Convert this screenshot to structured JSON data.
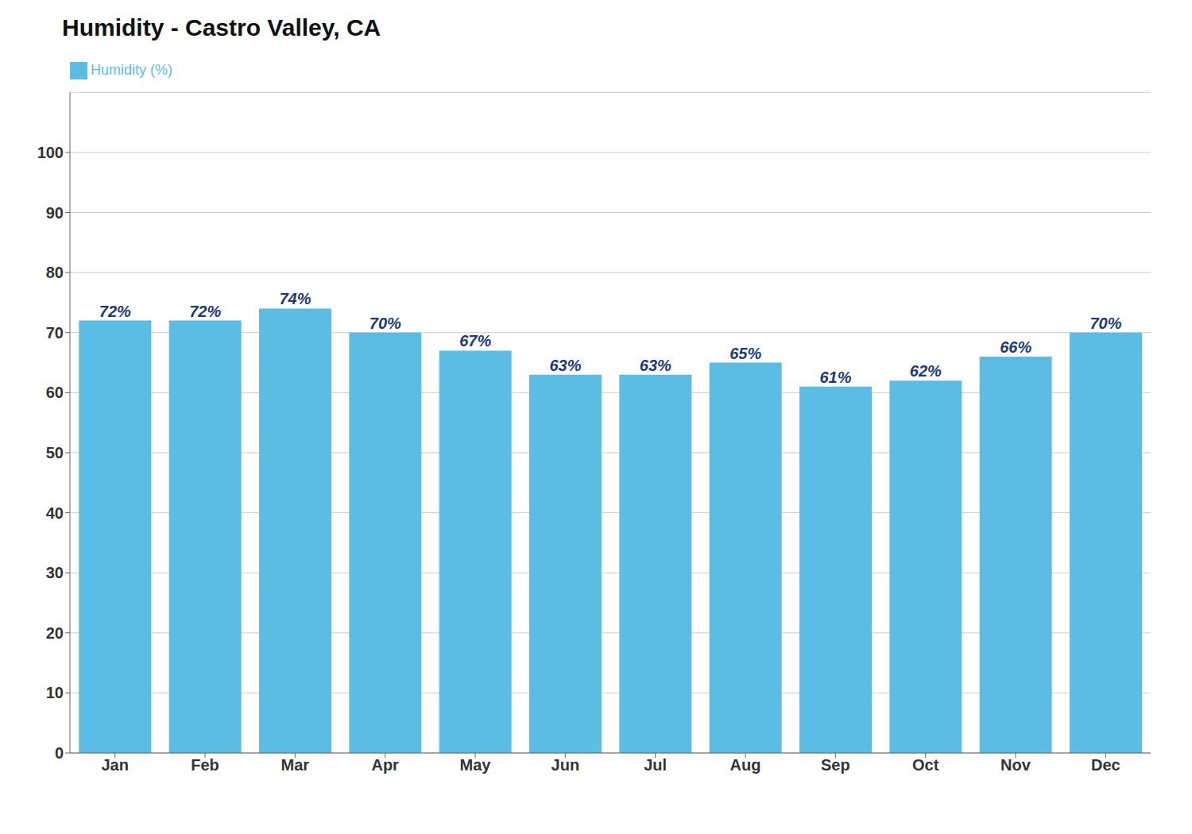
{
  "chart_data": {
    "type": "bar",
    "title": "Humidity - Castro Valley, CA",
    "categories": [
      "Jan",
      "Feb",
      "Mar",
      "Apr",
      "May",
      "Jun",
      "Jul",
      "Aug",
      "Sep",
      "Oct",
      "Nov",
      "Dec"
    ],
    "series": [
      {
        "name": "Humidity (%)",
        "color": "#5bbde4",
        "values": [
          72,
          72,
          74,
          70,
          67,
          63,
          63,
          65,
          61,
          62,
          66,
          70
        ],
        "value_labels": [
          "72%",
          "72%",
          "74%",
          "70%",
          "67%",
          "63%",
          "63%",
          "65%",
          "61%",
          "62%",
          "66%",
          "70%"
        ]
      }
    ],
    "ylim": [
      0,
      110
    ],
    "yticks": [
      0,
      10,
      20,
      30,
      40,
      50,
      60,
      70,
      80,
      90,
      100
    ],
    "grid": true,
    "legend": "upper left",
    "data_labels": true
  }
}
